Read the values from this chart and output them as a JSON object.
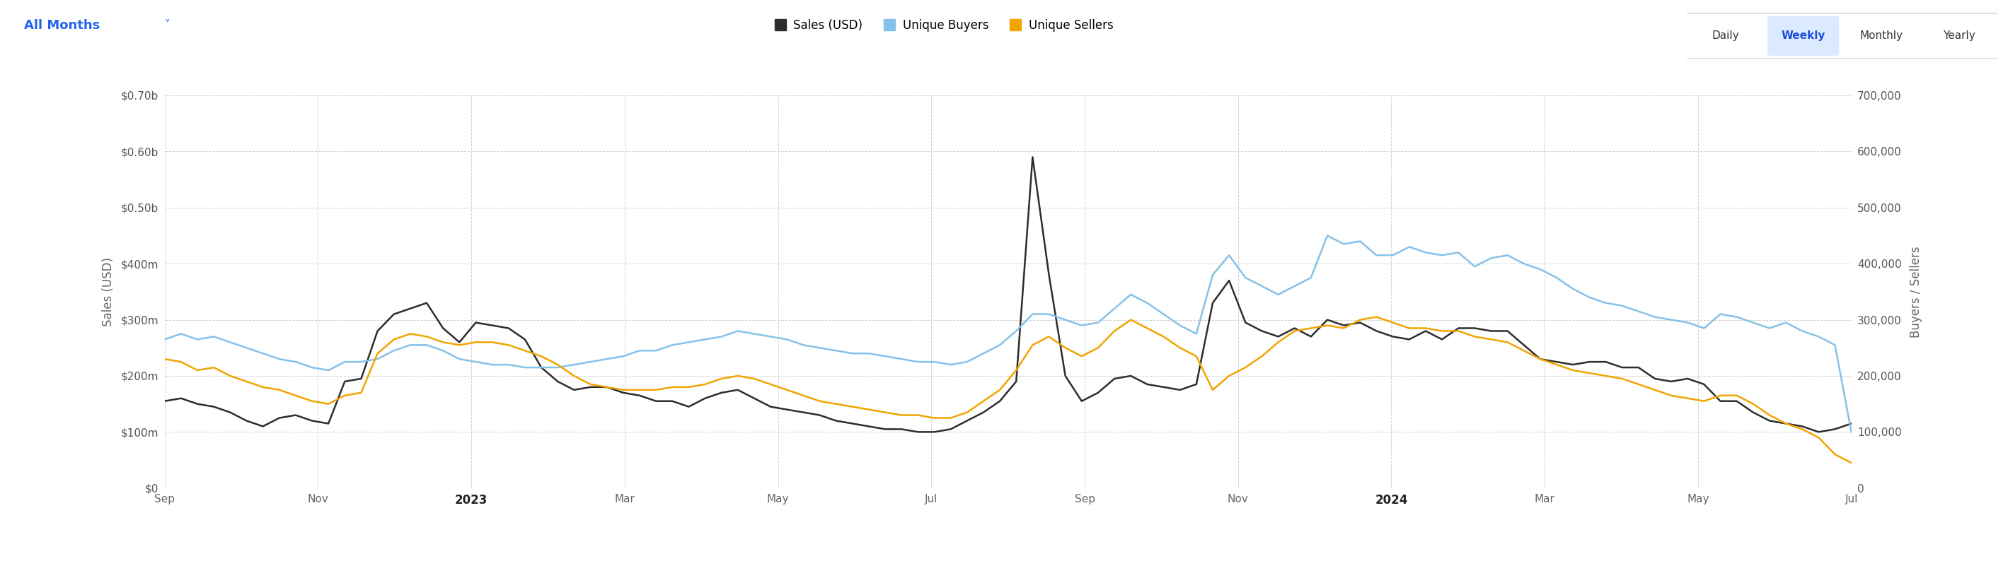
{
  "xlabel_left": "Sales (USD)",
  "xlabel_right": "Buyers / Sellers",
  "background_color": "#ffffff",
  "grid_color": "#d0d0d0",
  "sales_color": "#2d2d2d",
  "buyers_color": "#85C1E9",
  "sellers_color": "#F0A500",
  "legend_labels": [
    "Sales (USD)",
    "Unique Buyers",
    "Unique Sellers"
  ],
  "header_left": "All Months",
  "header_tabs": [
    "Daily",
    "Weekly",
    "Monthly",
    "Yearly"
  ],
  "active_tab": "Weekly",
  "x_labels": [
    "Sep",
    "Nov",
    "2023",
    "Mar",
    "May",
    "Jul",
    "Sep",
    "Nov",
    "2024",
    "Mar",
    "May",
    "Jul"
  ],
  "x_label_bold": [
    "2023",
    "2024"
  ],
  "sales_data": [
    155,
    160,
    150,
    145,
    135,
    120,
    110,
    125,
    130,
    120,
    115,
    190,
    195,
    280,
    310,
    320,
    330,
    285,
    260,
    295,
    290,
    285,
    265,
    215,
    190,
    175,
    180,
    180,
    170,
    165,
    155,
    155,
    145,
    160,
    170,
    175,
    160,
    145,
    140,
    135,
    130,
    120,
    115,
    110,
    105,
    105,
    100,
    100,
    105,
    120,
    135,
    155,
    190,
    590,
    380,
    200,
    155,
    170,
    195,
    200,
    185,
    180,
    175,
    185,
    330,
    370,
    295,
    280,
    270,
    285,
    270,
    300,
    290,
    295,
    280,
    270,
    265,
    280,
    265,
    285,
    285,
    280,
    280,
    255,
    230,
    225,
    220,
    225,
    225,
    215,
    215,
    195,
    190,
    195,
    185,
    155,
    155,
    135,
    120,
    115,
    110,
    100,
    105,
    115
  ],
  "buyers_data": [
    265,
    275,
    265,
    270,
    260,
    250,
    240,
    230,
    225,
    215,
    210,
    225,
    225,
    230,
    245,
    255,
    255,
    245,
    230,
    225,
    220,
    220,
    215,
    215,
    215,
    220,
    225,
    230,
    235,
    245,
    245,
    255,
    260,
    265,
    270,
    280,
    275,
    270,
    265,
    255,
    250,
    245,
    240,
    240,
    235,
    230,
    225,
    225,
    220,
    225,
    240,
    255,
    280,
    310,
    310,
    300,
    290,
    295,
    320,
    345,
    330,
    310,
    290,
    275,
    380,
    415,
    375,
    360,
    345,
    360,
    375,
    450,
    435,
    440,
    415,
    415,
    430,
    420,
    415,
    420,
    395,
    410,
    415,
    400,
    390,
    375,
    355,
    340,
    330,
    325,
    315,
    305,
    300,
    295,
    285,
    310,
    305,
    295,
    285,
    295,
    280,
    270,
    255,
    100
  ],
  "sellers_data": [
    230,
    225,
    210,
    215,
    200,
    190,
    180,
    175,
    165,
    155,
    150,
    165,
    170,
    240,
    265,
    275,
    270,
    260,
    255,
    260,
    260,
    255,
    245,
    235,
    220,
    200,
    185,
    180,
    175,
    175,
    175,
    180,
    180,
    185,
    195,
    200,
    195,
    185,
    175,
    165,
    155,
    150,
    145,
    140,
    135,
    130,
    130,
    125,
    125,
    135,
    155,
    175,
    210,
    255,
    270,
    250,
    235,
    250,
    280,
    300,
    285,
    270,
    250,
    235,
    175,
    200,
    215,
    235,
    260,
    280,
    285,
    290,
    285,
    300,
    305,
    295,
    285,
    285,
    280,
    280,
    270,
    265,
    260,
    245,
    230,
    220,
    210,
    205,
    200,
    195,
    185,
    175,
    165,
    160,
    155,
    165,
    165,
    150,
    130,
    115,
    105,
    90,
    60,
    45
  ],
  "n_points": 104,
  "x_tick_positions": [
    0,
    17,
    34,
    51,
    68,
    85
  ],
  "x_tick_positions_2": [
    0,
    8.6,
    17.2,
    25.8,
    34.4,
    43.0,
    51.6,
    60.2,
    68.8,
    77.4,
    86.0,
    94.6
  ]
}
